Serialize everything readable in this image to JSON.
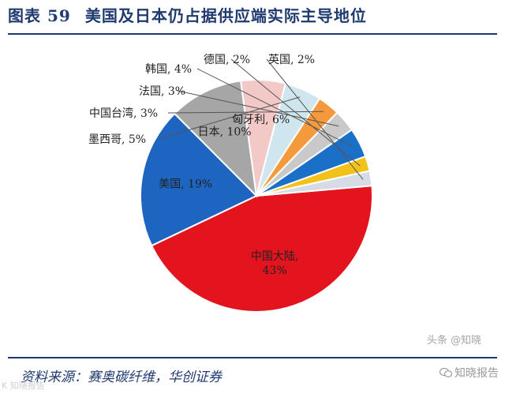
{
  "title": {
    "prefix": "图表",
    "number": "59",
    "text": "美国及日本仍占据供应端实际主导地位"
  },
  "source": "资料来源：赛奥碳纤维，华创证券",
  "watermark": "知晓报告",
  "watermark_ghost": "头条 @知晓",
  "watermark_left": "K  知晓报告",
  "chart_data": {
    "type": "pie",
    "start_angle_deg": -5,
    "direction": "clockwise",
    "slices": [
      {
        "label": "中国大陆",
        "value": 43,
        "color": "#e3141e",
        "label_position": "inside",
        "text": "中国大陆,\n43%"
      },
      {
        "label": "美国",
        "value": 19,
        "color": "#1d65c1",
        "label_position": "inside",
        "text": "美国, 19%"
      },
      {
        "label": "日本",
        "value": 10,
        "color": "#a6a6a6",
        "label_position": "inside",
        "text": "日本, 10%"
      },
      {
        "label": "匈牙利",
        "value": 6,
        "color": "#f2c9c6",
        "label_position": "inside",
        "text": "匈牙利, 6%"
      },
      {
        "label": "墨西哥",
        "value": 5,
        "color": "#cfe6ef",
        "label_position": "outside",
        "text": "墨西哥, 5%"
      },
      {
        "label": "中国台湾",
        "value": 3,
        "color": "#f59a3c",
        "label_position": "outside",
        "text": "中国台湾, 3%"
      },
      {
        "label": "法国",
        "value": 3,
        "color": "#c9c9c9",
        "label_position": "outside",
        "text": "法国, 3%"
      },
      {
        "label": "韩国",
        "value": 4,
        "color": "#1a70c8",
        "label_position": "outside",
        "text": "韩国, 4%"
      },
      {
        "label": "德国",
        "value": 2,
        "color": "#f2c21a",
        "label_position": "outside",
        "text": "德国, 2%"
      },
      {
        "label": "英国",
        "value": 2,
        "color": "#d6dce6",
        "label_position": "outside",
        "text": "英国, 2%"
      }
    ]
  }
}
